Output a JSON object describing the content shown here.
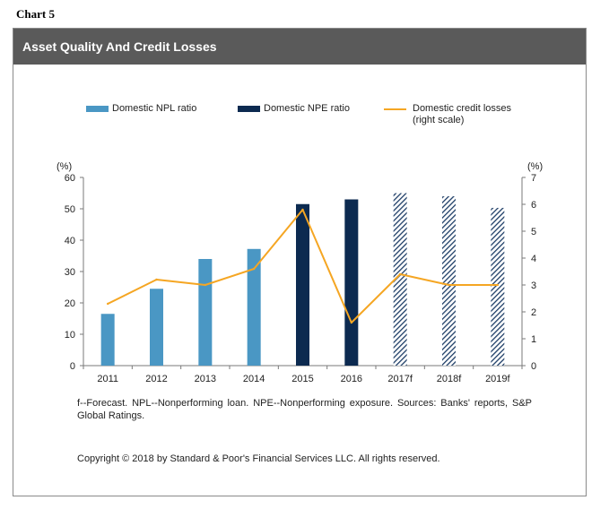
{
  "page_label": "Chart 5",
  "header": {
    "title": "Asset Quality And Credit Losses"
  },
  "legend": {
    "npl": "Domestic NPL ratio",
    "npe": "Domestic NPE ratio",
    "losses_line1": "Domestic credit losses",
    "losses_line2": "(right scale)"
  },
  "axes": {
    "left_unit": "(%)",
    "right_unit": "(%)"
  },
  "colors": {
    "npl": "#4a97c4",
    "npe": "#0c2a50",
    "forecast": "#1d3d66",
    "losses": "#f5a623"
  },
  "chart_data": {
    "type": "bar",
    "categories": [
      "2011",
      "2012",
      "2013",
      "2014",
      "2015",
      "2016",
      "2017f",
      "2018f",
      "2019f"
    ],
    "series": [
      {
        "name": "Domestic NPL ratio",
        "axis": "left",
        "values": [
          16.5,
          24.5,
          34,
          37.2,
          null,
          null,
          null,
          null,
          null
        ]
      },
      {
        "name": "Domestic NPE ratio",
        "axis": "left",
        "values": [
          null,
          null,
          null,
          null,
          51.5,
          53,
          55,
          54,
          50.3
        ]
      },
      {
        "name": "Domestic credit losses (right scale)",
        "type": "line",
        "axis": "right",
        "values": [
          2.3,
          3.2,
          3.0,
          3.6,
          5.8,
          1.6,
          3.4,
          3.0,
          3.0
        ]
      }
    ],
    "forecast_categories": [
      "2017f",
      "2018f",
      "2019f"
    ],
    "yleft": {
      "min": 0,
      "max": 60,
      "ticks": [
        "0",
        "10",
        "20",
        "30",
        "40",
        "50",
        "60"
      ]
    },
    "yright": {
      "min": 0,
      "max": 7,
      "ticks": [
        "0",
        "1",
        "2",
        "3",
        "4",
        "5",
        "6",
        "7"
      ]
    }
  },
  "footnote": "f--Forecast. NPL--Nonperforming loan. NPE--Nonperforming exposure. Sources: Banks' reports, S&P Global Ratings.",
  "copyright": "Copyright © 2018 by Standard & Poor's Financial Services LLC. All rights reserved."
}
